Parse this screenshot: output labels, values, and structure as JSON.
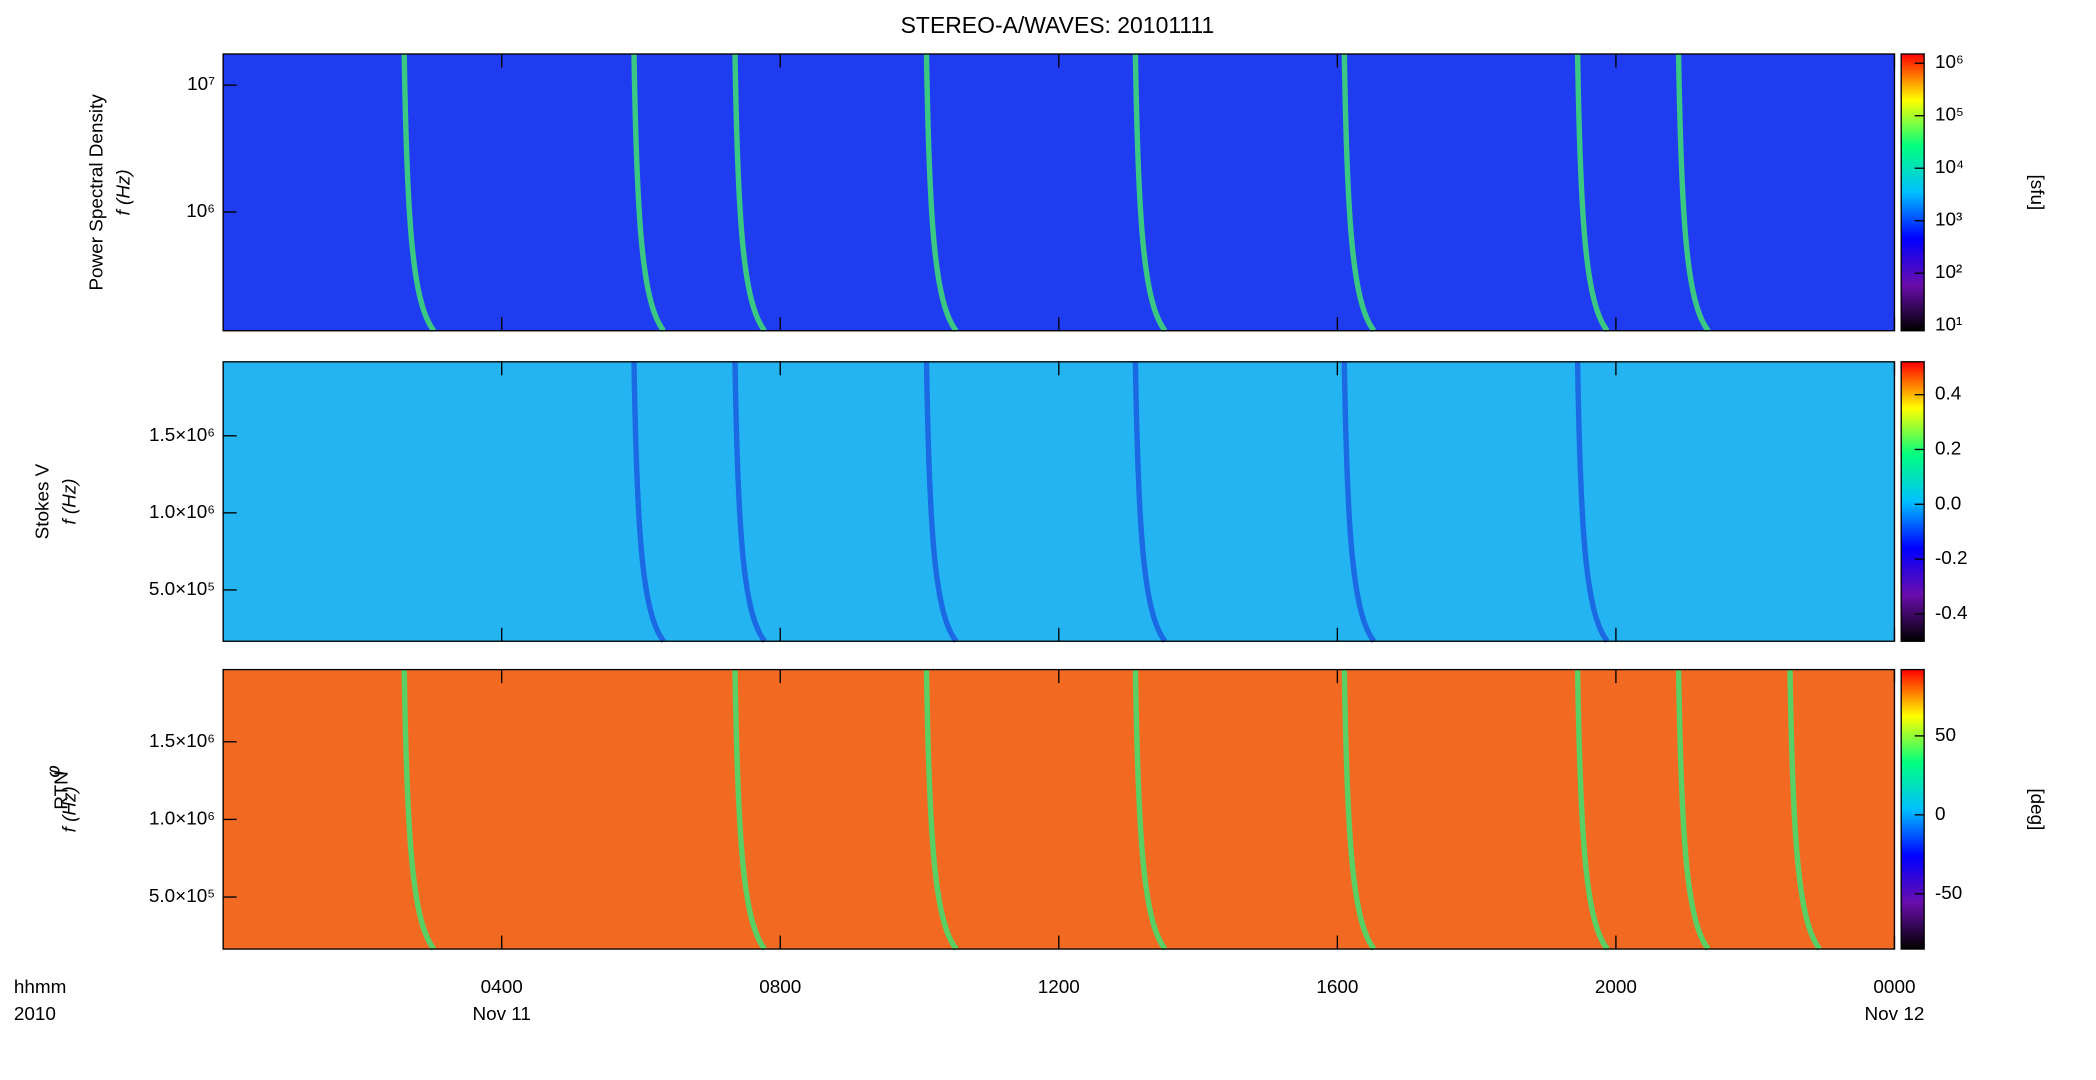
{
  "chart_data": [
    {
      "type": "heatmap",
      "title": "STEREO-A/WAVES: 20101111",
      "ylabel": "Power Spectral Density",
      "ylabel2": "f (Hz)",
      "ylog": true,
      "ylim": [
        116000,
        17600000
      ],
      "yticks": [
        {
          "value": 1000000,
          "label": "10⁶"
        },
        {
          "value": 10000000,
          "label": "10⁷"
        }
      ],
      "background": "#1f3cf0",
      "burst_color": "#40e070",
      "bursts": {
        "x": [
          2.6,
          5.9,
          7.35,
          10.1,
          13.1,
          16.1,
          19.45,
          20.9
        ]
      },
      "colorbar": {
        "log": true,
        "zlim": [
          8,
          1500000
        ],
        "label": "[sfu]",
        "ticks": [
          {
            "value": 10,
            "label": "10¹"
          },
          {
            "value": 100,
            "label": "10²"
          },
          {
            "value": 1000,
            "label": "10³"
          },
          {
            "value": 10000,
            "label": "10⁴"
          },
          {
            "value": 100000,
            "label": "10⁵"
          },
          {
            "value": 1000000,
            "label": "10⁶"
          }
        ]
      },
      "colormap": [
        "#000000",
        "#6a0dad",
        "#0000ff",
        "#00c0ff",
        "#00ff80",
        "#ffff00",
        "#ff0000"
      ]
    },
    {
      "type": "heatmap",
      "ylabel": "Stokes V",
      "ylabel2": "f (Hz)",
      "ylog": false,
      "ylim": [
        167000,
        1980000
      ],
      "yticks": [
        {
          "value": 500000,
          "label": "5.0×10⁵"
        },
        {
          "value": 1000000,
          "label": "1.0×10⁶"
        },
        {
          "value": 1500000,
          "label": "1.5×10⁶"
        }
      ],
      "background": "#25b4f2",
      "burst_color": "#1a5ce0",
      "bursts": {
        "x": [
          5.9,
          7.35,
          10.1,
          13.1,
          16.1,
          19.45
        ]
      },
      "colorbar": {
        "log": false,
        "zlim": [
          -0.5,
          0.52
        ],
        "label": null,
        "ticks": [
          -0.4,
          -0.2,
          {
            "value": 0,
            "label": "0.0"
          },
          0.2,
          0.4
        ]
      },
      "colormap": [
        "#000000",
        "#6a0dad",
        "#0000ff",
        "#00c0ff",
        "#00ff80",
        "#ffff00",
        "#ff0000"
      ]
    },
    {
      "type": "heatmap",
      "ylabel": "φ",
      "ylabel_sub": "RTN",
      "ylabel2": "f (Hz)",
      "ylog": false,
      "ylim": [
        165000,
        1965000
      ],
      "yticks": [
        {
          "value": 500000,
          "label": "5.0×10⁵"
        },
        {
          "value": 1000000,
          "label": "1.0×10⁶"
        },
        {
          "value": 1500000,
          "label": "1.5×10⁶"
        }
      ],
      "background": "#f26a22",
      "burst_color": "#40e070",
      "bursts": {
        "x": [
          2.6,
          7.35,
          10.1,
          13.1,
          16.1,
          19.45,
          20.9,
          22.5
        ]
      },
      "colorbar": {
        "log": false,
        "zlim": [
          -85,
          92
        ],
        "label": "[deg]",
        "ticks": [
          -50,
          0,
          50
        ]
      },
      "colormap": [
        "#000000",
        "#6a0dad",
        "#0000ff",
        "#00c0ff",
        "#00ff80",
        "#ffff00",
        "#ff0000"
      ],
      "xlim": [
        0,
        24
      ],
      "xticks": [
        {
          "value": 4,
          "label": "0400"
        },
        {
          "value": 8,
          "label": "0800"
        },
        {
          "value": 12,
          "label": "1200"
        },
        {
          "value": 16,
          "label": "1600"
        },
        {
          "value": 20,
          "label": "2000"
        },
        {
          "value": 24,
          "label": "0000"
        }
      ],
      "xtick_dates": [
        {
          "value": 4,
          "label": "Nov 11"
        },
        {
          "value": 24,
          "label": "Nov 12"
        }
      ],
      "xlabel": "hhmm",
      "xlabel2": "2010"
    }
  ]
}
